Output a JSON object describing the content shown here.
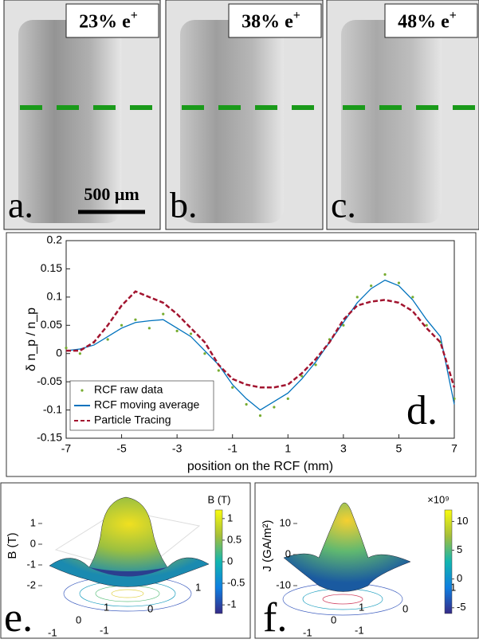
{
  "images": [
    {
      "label": "23% e",
      "sup": "+",
      "panel": "a."
    },
    {
      "label": "38% e",
      "sup": "+",
      "panel": "b."
    },
    {
      "label": "48% e",
      "sup": "+",
      "panel": "c."
    }
  ],
  "scale_bar": "500 μm",
  "chart_data": [
    {
      "type": "line",
      "panel": "d.",
      "xlabel": "position on the RCF (mm)",
      "ylabel": "δ n_p / n_p",
      "xlim": [
        -7,
        7
      ],
      "xticks": [
        -7,
        -5,
        -3,
        -1,
        1,
        3,
        5,
        7
      ],
      "ylim": [
        -0.15,
        0.2
      ],
      "yticks": [
        -0.15,
        -0.1,
        -0.05,
        0,
        0.05,
        0.1,
        0.15,
        0.2
      ],
      "legend": "lower left",
      "x": [
        -7,
        -6.5,
        -6,
        -5.5,
        -5,
        -4.5,
        -4,
        -3.5,
        -3,
        -2.5,
        -2,
        -1.5,
        -1,
        -0.5,
        0,
        0.5,
        1,
        1.5,
        2,
        2.5,
        3,
        3.5,
        4,
        4.5,
        5,
        5.5,
        6,
        6.5,
        7
      ],
      "series": [
        {
          "name": "RCF raw data",
          "color": "#77ac30",
          "style": "dots",
          "values": [
            0.01,
            0,
            0.02,
            0.025,
            0.05,
            0.06,
            0.045,
            0.07,
            0.04,
            0.035,
            0,
            -0.03,
            -0.06,
            -0.09,
            -0.11,
            -0.095,
            -0.08,
            -0.04,
            -0.02,
            0.025,
            0.05,
            0.1,
            0.12,
            0.14,
            0.125,
            0.1,
            0.05,
            0.02,
            -0.08
          ]
        },
        {
          "name": "RCF moving average",
          "color": "#0072bd",
          "style": "solid",
          "values": [
            0.005,
            0.008,
            0.015,
            0.03,
            0.045,
            0.055,
            0.058,
            0.06,
            0.045,
            0.03,
            0.005,
            -0.02,
            -0.055,
            -0.08,
            -0.1,
            -0.085,
            -0.07,
            -0.045,
            -0.015,
            0.02,
            0.055,
            0.09,
            0.115,
            0.13,
            0.12,
            0.095,
            0.06,
            0.03,
            -0.09
          ]
        },
        {
          "name": "Particle Tracing",
          "color": "#a2142f",
          "style": "dashed",
          "values": [
            0.005,
            0.005,
            0.02,
            0.05,
            0.085,
            0.11,
            0.1,
            0.09,
            0.07,
            0.045,
            0.02,
            -0.02,
            -0.045,
            -0.055,
            -0.06,
            -0.06,
            -0.055,
            -0.035,
            -0.01,
            0.02,
            0.06,
            0.085,
            0.092,
            0.095,
            0.09,
            0.075,
            0.045,
            0.02,
            -0.06
          ]
        }
      ]
    },
    {
      "type": "surface",
      "panel": "e.",
      "zlabel": "B (T)",
      "colorbar_title": "B (T)",
      "zticks": [
        -2,
        -1,
        0,
        1
      ],
      "xticks": [
        -1,
        0,
        1
      ],
      "yticks": [
        -1,
        0,
        1
      ],
      "clim": [
        -1.2,
        1.2
      ],
      "cticks": [
        -1,
        -0.5,
        0,
        0.5,
        1
      ]
    },
    {
      "type": "surface",
      "panel": "f.",
      "zlabel": "J (GA/m²)",
      "colorbar_title": "×10⁹",
      "zticks": [
        -10,
        0,
        10
      ],
      "xticks": [
        -1,
        0,
        1
      ],
      "yticks": [
        -1,
        0,
        1
      ],
      "clim": [
        -6,
        12
      ],
      "cticks": [
        -5,
        0,
        5,
        10
      ]
    }
  ]
}
